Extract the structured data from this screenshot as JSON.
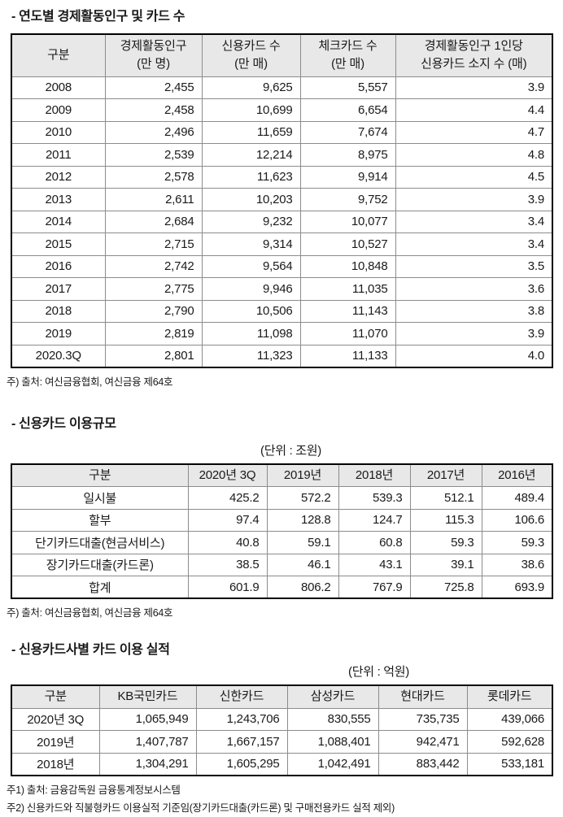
{
  "colors": {
    "page_bg": "#ffffff",
    "table_header_bg": "#e8e8e8",
    "outer_border": "#000000",
    "inner_border": "#8c8c8c"
  },
  "sections": [
    {
      "title": "- 연도별 경제활동인구 및 카드 수",
      "unit": null,
      "table": {
        "headers": [
          "구분",
          "경제활동인구\n(만 명)",
          "신용카드 수\n(만 매)",
          "체크카드 수\n(만 매)",
          "경제활동인구 1인당\n신용카드 소지 수 (매)"
        ],
        "rows": [
          [
            "2008",
            "2,455",
            "9,625",
            "5,557",
            "3.9"
          ],
          [
            "2009",
            "2,458",
            "10,699",
            "6,654",
            "4.4"
          ],
          [
            "2010",
            "2,496",
            "11,659",
            "7,674",
            "4.7"
          ],
          [
            "2011",
            "2,539",
            "12,214",
            "8,975",
            "4.8"
          ],
          [
            "2012",
            "2,578",
            "11,623",
            "9,914",
            "4.5"
          ],
          [
            "2013",
            "2,611",
            "10,203",
            "9,752",
            "3.9"
          ],
          [
            "2014",
            "2,684",
            "9,232",
            "10,077",
            "3.4"
          ],
          [
            "2015",
            "2,715",
            "9,314",
            "10,527",
            "3.4"
          ],
          [
            "2016",
            "2,742",
            "9,564",
            "10,848",
            "3.5"
          ],
          [
            "2017",
            "2,775",
            "9,946",
            "11,035",
            "3.6"
          ],
          [
            "2018",
            "2,790",
            "10,506",
            "11,143",
            "3.8"
          ],
          [
            "2019",
            "2,819",
            "11,098",
            "11,070",
            "3.9"
          ],
          [
            "2020.3Q",
            "2,801",
            "11,323",
            "11,133",
            "4.0"
          ]
        ]
      },
      "notes": [
        "주) 출처: 여신금융협회, 여신금융 제64호"
      ]
    },
    {
      "title": "- 신용카드 이용규모",
      "unit": "(단위 : 조원)",
      "table": {
        "headers": [
          "구분",
          "2020년 3Q",
          "2019년",
          "2018년",
          "2017년",
          "2016년"
        ],
        "rows": [
          [
            "일시불",
            "425.2",
            "572.2",
            "539.3",
            "512.1",
            "489.4"
          ],
          [
            "할부",
            "97.4",
            "128.8",
            "124.7",
            "115.3",
            "106.6"
          ],
          [
            "단기카드대출(현금서비스)",
            "40.8",
            "59.1",
            "60.8",
            "59.3",
            "59.3"
          ],
          [
            "장기카드대출(카드론)",
            "38.5",
            "46.1",
            "43.1",
            "39.1",
            "38.6"
          ],
          [
            "합계",
            "601.9",
            "806.2",
            "767.9",
            "725.8",
            "693.9"
          ]
        ]
      },
      "notes": [
        "주) 출처: 여신금융협회, 여신금융 제64호"
      ]
    },
    {
      "title": "- 신용카드사별 카드 이용 실적",
      "unit": "(단위 : 억원)",
      "table": {
        "headers": [
          "구분",
          "KB국민카드",
          "신한카드",
          "삼성카드",
          "현대카드",
          "롯데카드"
        ],
        "rows": [
          [
            "2020년 3Q",
            "1,065,949",
            "1,243,706",
            "830,555",
            "735,735",
            "439,066"
          ],
          [
            "2019년",
            "1,407,787",
            "1,667,157",
            "1,088,401",
            "942,471",
            "592,628"
          ],
          [
            "2018년",
            "1,304,291",
            "1,605,295",
            "1,042,491",
            "883,442",
            "533,181"
          ]
        ]
      },
      "notes": [
        "주1) 출처: 금융감독원 금융통계정보시스템",
        "주2) 신용카드와 직불형카드 이용실적 기준임(장기카드대출(카드론) 및 구매전용카드 실적 제외)"
      ]
    }
  ]
}
